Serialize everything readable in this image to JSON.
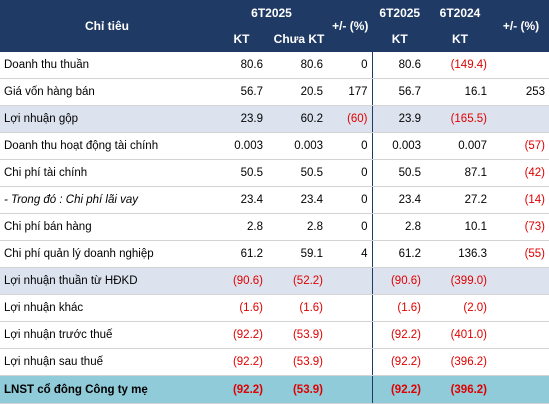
{
  "header": {
    "indicator": "Chỉ tiêu",
    "group1": "6T2025",
    "group2_a": "6T2025",
    "group2_b": "6T2024",
    "kt": "KT",
    "chua_kt": "Chưa KT",
    "kt2": "KT",
    "kt3": "KT",
    "change1": "+/- (%)",
    "change2": "+/- (%)"
  },
  "rows": [
    {
      "label": "Doanh thu thuần",
      "c1": "80.6",
      "c2": "80.6",
      "p1": "0",
      "c3": "80.6",
      "c4": "(149.4)",
      "p2": ""
    },
    {
      "label": "Giá vốn hàng bán",
      "c1": "56.7",
      "c2": "20.5",
      "p1": "177",
      "c3": "56.7",
      "c4": "16.1",
      "p2": "253"
    },
    {
      "label": "Lợi nhuận gộp",
      "c1": "23.9",
      "c2": "60.2",
      "p1": "(60)",
      "c3": "23.9",
      "c4": "(165.5)",
      "p2": ""
    },
    {
      "label": "Doanh thu hoạt động tài chính",
      "c1": "0.003",
      "c2": "0.003",
      "p1": "0",
      "c3": "0.003",
      "c4": "0.007",
      "p2": "(57)"
    },
    {
      "label": "Chi phí tài chính",
      "c1": "50.5",
      "c2": "50.5",
      "p1": "0",
      "c3": "50.5",
      "c4": "87.1",
      "p2": "(42)"
    },
    {
      "label": "- Trong đó : Chi phí lãi vay",
      "c1": "23.4",
      "c2": "23.4",
      "p1": "0",
      "c3": "23.4",
      "c4": "27.2",
      "p2": "(14)"
    },
    {
      "label": "Chi phí bán hàng",
      "c1": "2.8",
      "c2": "2.8",
      "p1": "0",
      "c3": "2.8",
      "c4": "10.1",
      "p2": "(73)"
    },
    {
      "label": "Chi phí quản lý doanh nghiệp",
      "c1": "61.2",
      "c2": "59.1",
      "p1": "4",
      "c3": "61.2",
      "c4": "136.3",
      "p2": "(55)"
    },
    {
      "label": "Lợi nhuận thuần từ HĐKD",
      "c1": "(90.6)",
      "c2": "(52.2)",
      "p1": "",
      "c3": "(90.6)",
      "c4": "(399.0)",
      "p2": ""
    },
    {
      "label": "Lợi nhuận khác",
      "c1": "(1.6)",
      "c2": "(1.6)",
      "p1": "",
      "c3": "(1.6)",
      "c4": "(2.0)",
      "p2": ""
    },
    {
      "label": "Lợi nhuận trước thuế",
      "c1": "(92.2)",
      "c2": "(53.9)",
      "p1": "",
      "c3": "(92.2)",
      "c4": "(401.0)",
      "p2": ""
    },
    {
      "label": "Lợi nhuận sau thuế",
      "c1": "(92.2)",
      "c2": "(53.9)",
      "p1": "",
      "c3": "(92.2)",
      "c4": "(396.2)",
      "p2": ""
    },
    {
      "label": "LNST cổ đông Công ty mẹ",
      "c1": "(92.2)",
      "c2": "(53.9)",
      "p1": "",
      "c3": "(92.2)",
      "c4": "(396.2)",
      "p2": ""
    }
  ],
  "colors": {
    "header": "#1f3a64",
    "shade": "#dce3ee",
    "final": "#8fcbd8",
    "negative": "#e00000"
  }
}
